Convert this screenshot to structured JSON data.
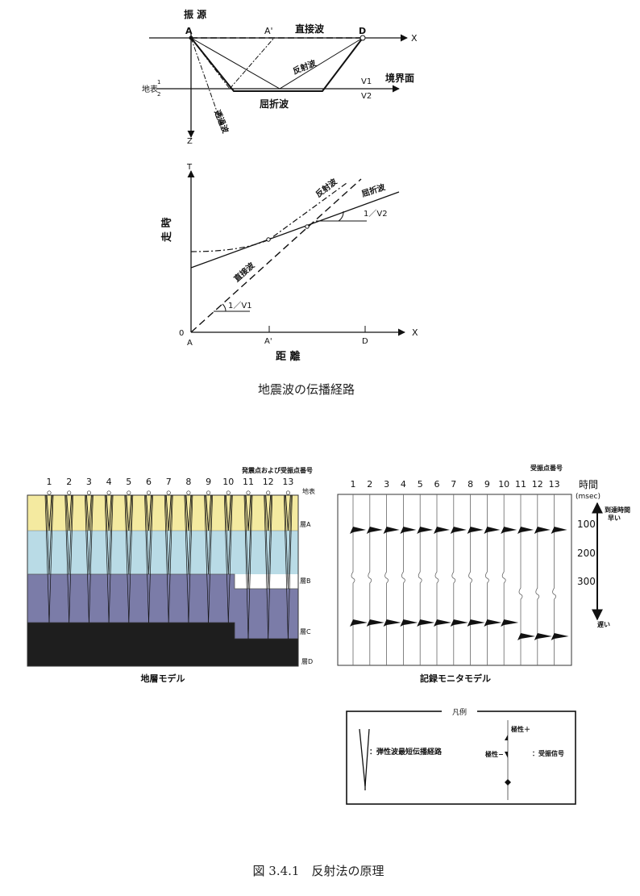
{
  "fig_top": {
    "source": "振 源",
    "a": "A",
    "a_prime": "A'",
    "d": "D",
    "x_axis": "X",
    "z_axis": "Z",
    "direct_wave": "直接波",
    "reflected_wave": "反射波",
    "refracted_wave": "屈折波",
    "transmitted_wave": "透過波",
    "boundary": "境界面",
    "ground_surface": "地表",
    "layer1": "1",
    "layer2": "2",
    "v1": "V1",
    "v2": "V2"
  },
  "fig_tt": {
    "t_axis": "T",
    "x_axis": "X",
    "origin": "0",
    "a": "A",
    "a_prime": "A'",
    "d": "D",
    "ylabel": "走 時",
    "xlabel": "距 離",
    "reflected": "反射波",
    "refracted": "屈折波",
    "direct": "直接波",
    "slope_v1": "1／V1",
    "slope_v2": "1／V2"
  },
  "caption1": "地震波の伝播経路",
  "model": {
    "header": "発震点および受振点番号",
    "numbers": [
      "1",
      "2",
      "3",
      "4",
      "5",
      "6",
      "7",
      "8",
      "9",
      "10",
      "11",
      "12",
      "13"
    ],
    "surface": "地表",
    "layers": [
      "層A",
      "層B",
      "層C",
      "層D"
    ],
    "caption": "地層モデル",
    "colors": {
      "a": "#f4eaa0",
      "b": "#b9dbe6",
      "c": "#7b7ca8",
      "d": "#1e1e1e"
    }
  },
  "monitor": {
    "header": "受振点番号",
    "numbers": [
      "1",
      "2",
      "3",
      "4",
      "5",
      "6",
      "7",
      "8",
      "9",
      "10",
      "11",
      "12",
      "13"
    ],
    "time_label": "時間",
    "time_unit": "(msec)",
    "arrival_label": "到達時間",
    "early": "早い",
    "late": "遅い",
    "ticks": [
      "100",
      "200",
      "300"
    ],
    "caption": "記録モニタモデル"
  },
  "legend": {
    "title": "凡例",
    "path": "：弾性波最短伝播経路",
    "pol_plus": "極性＋",
    "pol_minus": "極性−",
    "signal": "：受振信号"
  },
  "caption2": "図 3.4.1　反射法の原理"
}
